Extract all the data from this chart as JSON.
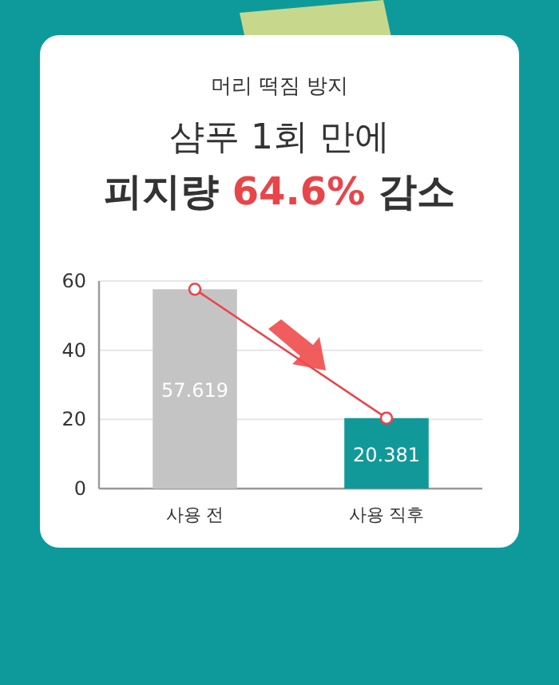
{
  "chart_data": {
    "type": "bar",
    "subtitle": "머리 떡짐 방지",
    "title": "샴푸 1회 만에\n피지량 64.6% 감소",
    "categories": [
      "사용 전",
      "사용 직후"
    ],
    "series": [
      {
        "colors": [
          "#c4c4c4",
          "#11999a"
        ],
        "values": [
          57.619,
          20.381
        ],
        "value_labels": [
          "57.619",
          "20.381"
        ]
      },
      {
        "type": "line",
        "color": "#e8454a",
        "values": [
          57.619,
          20.381
        ],
        "marker": "circle"
      }
    ],
    "ylim": [
      0,
      60
    ],
    "yticks": [
      0,
      20,
      40,
      60
    ],
    "grid": "y"
  }
}
